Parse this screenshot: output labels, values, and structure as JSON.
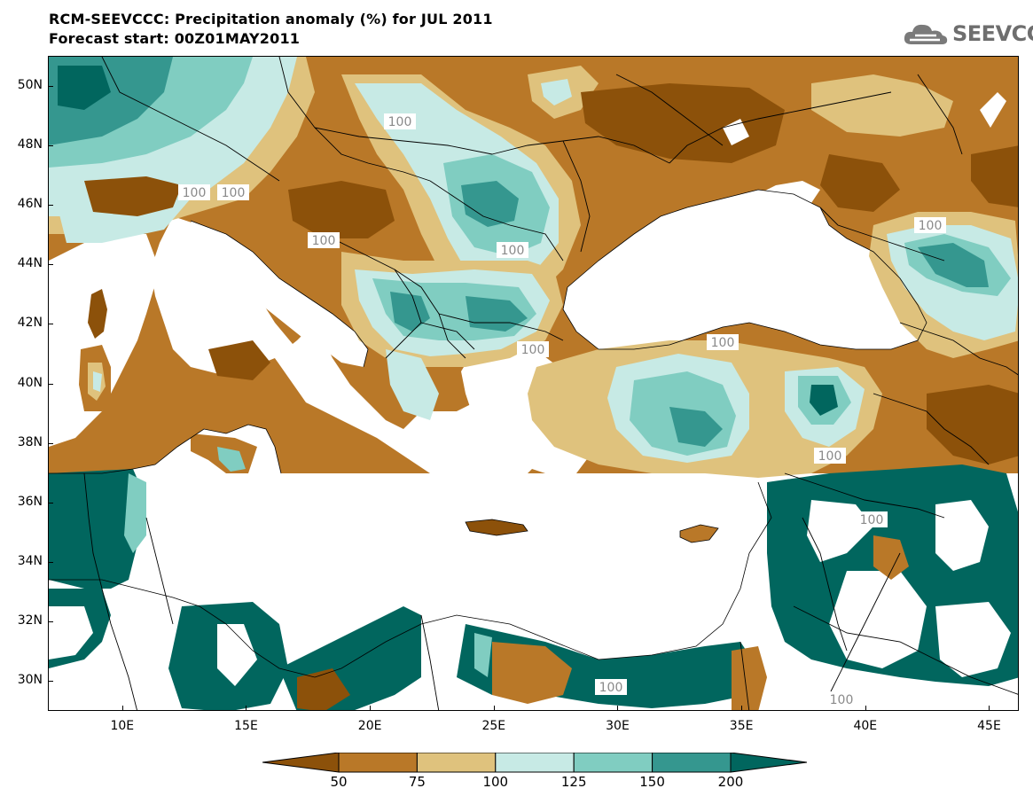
{
  "header": {
    "title_line1": "RCM-SEEVCCC: Precipitation anomaly (%) for JUL 2011",
    "title_line2": "Forecast start: 00Z01MAY2011",
    "logo_text": "SEEVCCC"
  },
  "axes": {
    "lat_labels": [
      "50N",
      "48N",
      "46N",
      "44N",
      "42N",
      "40N",
      "38N",
      "36N",
      "34N",
      "32N",
      "30N"
    ],
    "lon_labels": [
      "10E",
      "15E",
      "20E",
      "25E",
      "30E",
      "35E",
      "40E",
      "45E"
    ],
    "lat_values": [
      50,
      48,
      46,
      44,
      42,
      40,
      38,
      36,
      34,
      32,
      30
    ],
    "lon_values": [
      10,
      15,
      20,
      25,
      30,
      35,
      40,
      45
    ],
    "lon_range": [
      7,
      46.2
    ],
    "lat_range": [
      29,
      51
    ]
  },
  "contour_labels": [
    "100",
    "100",
    "100",
    "100",
    "100",
    "100",
    "100",
    "100",
    "100",
    "100",
    "100",
    "100"
  ],
  "legend": {
    "labels": [
      "50",
      "75",
      "100",
      "125",
      "150",
      "200"
    ],
    "colors": [
      "#8c510a",
      "#b97828",
      "#dfc27d",
      "#c7eae5",
      "#80cdc1",
      "#35978f",
      "#01665e"
    ]
  },
  "colors": {
    "sea": "#ffffff",
    "land_default": "#b97828",
    "borders": "#000000",
    "contour_label": "#8a8a8a"
  }
}
